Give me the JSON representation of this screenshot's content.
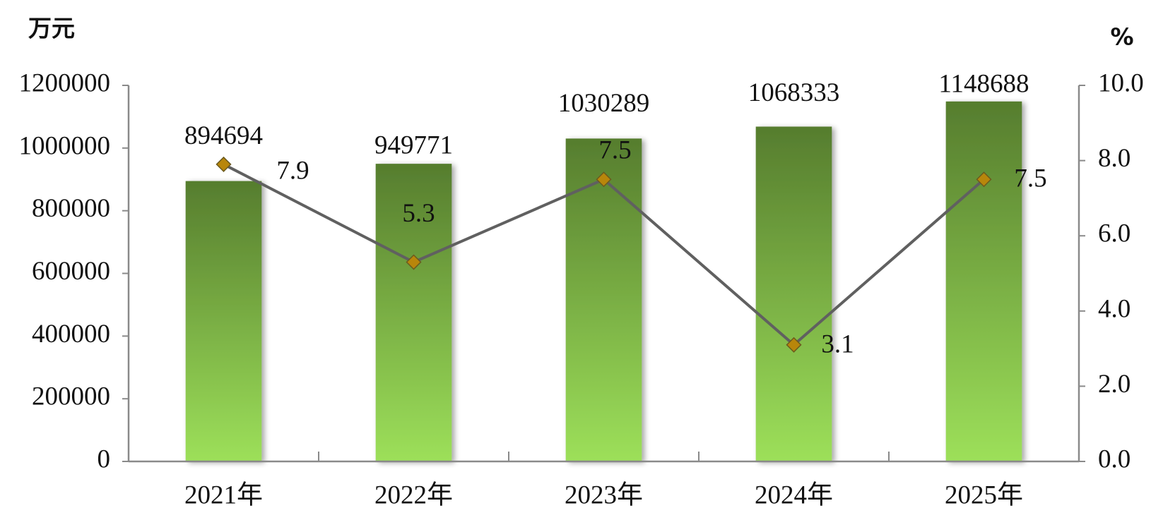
{
  "chart_data": {
    "type": "bar",
    "y_axis_label": "万元",
    "y2_axis_label": "%",
    "categories": [
      "2021年",
      "2022年",
      "2023年",
      "2024年",
      "2025年"
    ],
    "series": [
      {
        "name": "万元",
        "type": "bar",
        "color": "#9de05a",
        "values": [
          894694,
          949771,
          1030289,
          1068333,
          1148688
        ]
      },
      {
        "name": "%",
        "type": "line",
        "axis": "y2",
        "color": "#606060",
        "marker_color": "#b8860b",
        "values": [
          7.9,
          5.3,
          7.5,
          3.1,
          7.5
        ]
      }
    ],
    "ylim": [
      0,
      1200000
    ],
    "yticks": [
      0,
      200000,
      400000,
      600000,
      800000,
      1000000,
      1200000
    ],
    "y2lim": [
      0,
      10
    ],
    "y2ticks": [
      {
        "value": 0,
        "label": "0.0"
      },
      {
        "value": 2,
        "label": "2.0"
      },
      {
        "value": 4,
        "label": "4.0"
      },
      {
        "value": 6,
        "label": "6.0"
      },
      {
        "value": 8,
        "label": "8.0"
      },
      {
        "value": 10,
        "label": "10.0"
      }
    ]
  }
}
